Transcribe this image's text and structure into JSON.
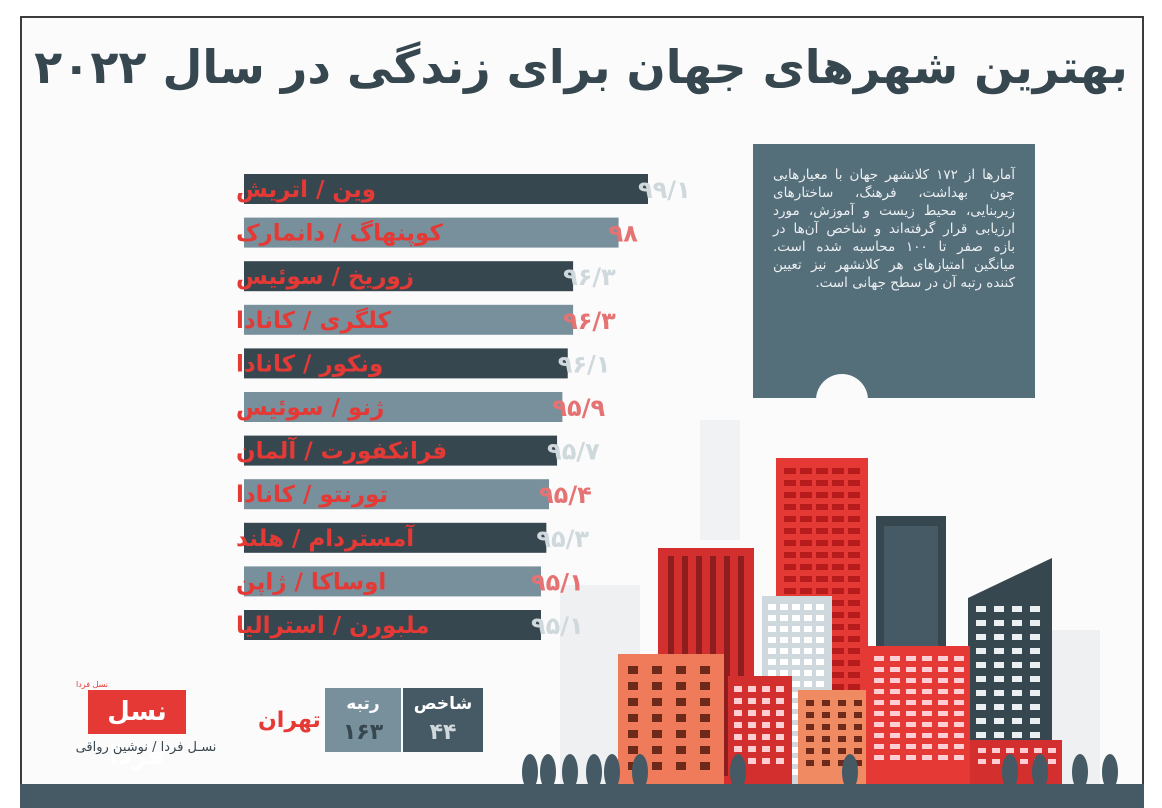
{
  "title": "بهترین شهرهای جهان برای زندگی در سال ۲۰۲۲",
  "info_text": "آمارها از ۱۷۲ کلانشهر جهان با معیارهایی چون بهداشت، فرهنگ، ساختارهای زیربنایی، محیط زیست و آموزش، مورد ارزیابی قرار گرفته‌اند و شاخص آن‌ها در بازه صفر تا ۱۰۰ محاسبه شده است. میانگین امتیازهای هر کلانشهر نیز تعیین کننده رتبه آن در سطح جهانی است.",
  "logo": {
    "text": "نسل فردا",
    "tag": "نسل فردا"
  },
  "credit": "نسـل فردا / نوشین رواقی",
  "tehran": {
    "label": "تهران",
    "rank_label": "رتبه",
    "rank_value": "۱۶۳",
    "index_label": "شاخص",
    "index_value": "۴۴"
  },
  "colors": {
    "accent": "#e53935",
    "bar_dark": "#37474f",
    "bar_light": "#78909c",
    "value_on_dark": "#cfd8dc",
    "value_on_light": "#e57373",
    "info_bg": "#546e7a"
  },
  "chart_data": {
    "type": "bar",
    "orientation": "horizontal",
    "categories": [
      "وین / اتریش",
      "کوپنهاگ / دانمارک",
      "زوریخ / سوئیس",
      "کلگری / کانادا",
      "ونکور / کانادا",
      "ژنو / سوئیس",
      "فرانکفورت / آلمان",
      "تورنتو / کانادا",
      "آمستردام / هلند",
      "اوساکا / ژاپن",
      "ملبورن / استرالیا"
    ],
    "values": [
      99.1,
      98,
      96.3,
      96.3,
      96.1,
      95.9,
      95.7,
      95.4,
      95.3,
      95.1,
      95.1
    ],
    "value_labels": [
      "۹۹/۱",
      "۹۸",
      "۹۶/۳",
      "۹۶/۳",
      "۹۶/۱",
      "۹۵/۹",
      "۹۵/۷",
      "۹۵/۴",
      "۹۵/۳",
      "۹۵/۱",
      "۹۵/۱"
    ],
    "title": "",
    "xlabel": "",
    "ylabel": "",
    "grid": false,
    "legend": "none"
  }
}
